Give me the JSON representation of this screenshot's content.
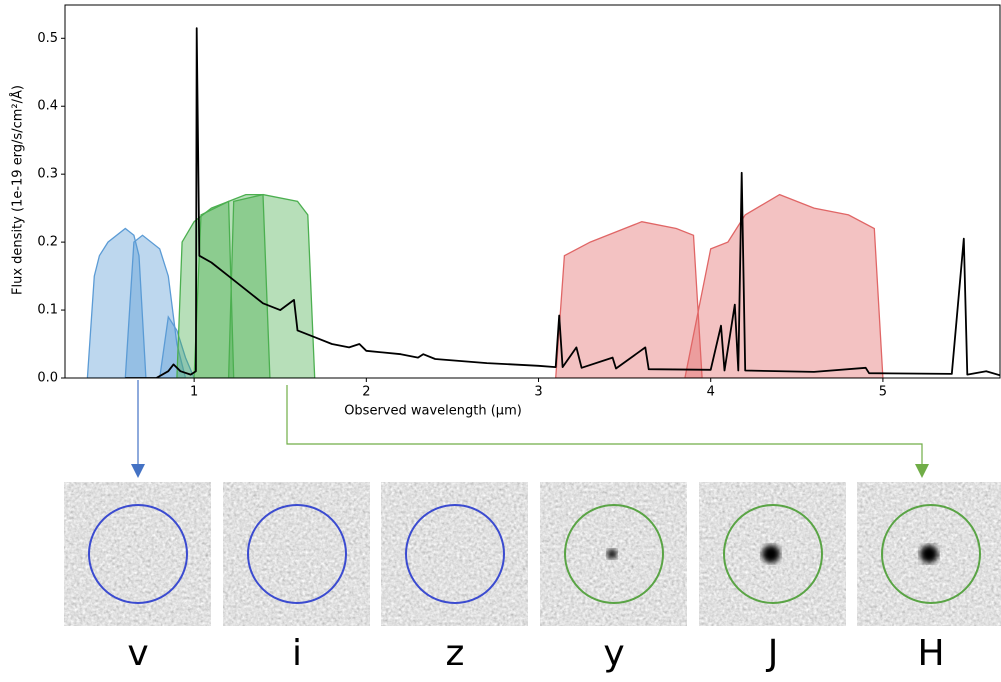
{
  "chart_data": {
    "type": "line",
    "xlabel": "Observed wavelength (μm)",
    "ylabel": "Flux density (1e-19 erg/s/cm²/Å)",
    "xlim": [
      0.25,
      5.68
    ],
    "ylim": [
      0,
      0.549
    ],
    "xticks": [
      1,
      2,
      3,
      4,
      5
    ],
    "yticks": [
      {
        "value": 0,
        "label": "0.0"
      },
      0.1,
      0.2,
      0.3,
      0.4,
      0.5
    ],
    "series": [
      {
        "type": "area",
        "color": "#5b9bd5",
        "x": [
          0.38,
          0.42,
          0.45,
          0.5,
          0.6,
          0.65,
          0.68,
          0.72
        ],
        "values": [
          0,
          0.15,
          0.18,
          0.2,
          0.22,
          0.21,
          0.18,
          0
        ]
      },
      {
        "type": "area",
        "color": "#5b9bd5",
        "x": [
          0.6,
          0.65,
          0.7,
          0.8,
          0.85,
          0.9,
          0.95
        ],
        "values": [
          0,
          0.2,
          0.21,
          0.19,
          0.15,
          0.05,
          0
        ]
      },
      {
        "type": "area",
        "color": "#5b9bd5",
        "x": [
          0.8,
          0.85,
          0.9,
          0.95,
          1.0
        ],
        "values": [
          0,
          0.09,
          0.07,
          0.03,
          0
        ]
      },
      {
        "type": "area",
        "color": "#4caf50",
        "x": [
          0.9,
          0.93,
          1.0,
          1.1,
          1.2,
          1.23
        ],
        "values": [
          0,
          0.2,
          0.23,
          0.25,
          0.26,
          0
        ]
      },
      {
        "type": "area",
        "color": "#4caf50",
        "x": [
          1.0,
          1.04,
          1.2,
          1.3,
          1.4,
          1.44
        ],
        "values": [
          0,
          0.24,
          0.26,
          0.27,
          0.27,
          0
        ]
      },
      {
        "type": "area",
        "color": "#4caf50",
        "x": [
          1.2,
          1.23,
          1.4,
          1.6,
          1.66,
          1.7
        ],
        "values": [
          0,
          0.26,
          0.27,
          0.26,
          0.24,
          0
        ]
      },
      {
        "type": "area",
        "color": "#e06666",
        "x": [
          3.1,
          3.15,
          3.3,
          3.5,
          3.6,
          3.8,
          3.9,
          3.95
        ],
        "values": [
          0,
          0.18,
          0.2,
          0.22,
          0.23,
          0.22,
          0.21,
          0
        ]
      },
      {
        "type": "area",
        "color": "#e06666",
        "x": [
          3.85,
          4.0,
          4.1,
          4.2,
          4.4,
          4.6,
          4.8,
          4.95,
          5.0
        ],
        "values": [
          0,
          0.19,
          0.2,
          0.24,
          0.27,
          0.25,
          0.24,
          0.22,
          0
        ]
      },
      {
        "type": "line",
        "color": "#000000",
        "x": [
          0.6,
          0.78,
          0.85,
          0.88,
          0.92,
          0.98,
          1.01,
          1.015,
          1.03,
          1.1,
          1.2,
          1.3,
          1.4,
          1.5,
          1.58,
          1.6,
          1.7,
          1.8,
          1.9,
          1.96,
          2.0,
          2.2,
          2.3,
          2.33,
          2.4,
          2.7,
          3.0,
          3.1,
          3.12,
          3.14,
          3.22,
          3.25,
          3.43,
          3.45,
          3.62,
          3.64,
          4.0,
          4.06,
          4.08,
          4.14,
          4.16,
          4.18,
          4.2,
          4.6,
          4.9,
          4.92,
          5.4,
          5.47,
          5.49,
          5.6,
          5.68
        ],
        "values": [
          0,
          0,
          0.01,
          0.02,
          0.01,
          0.005,
          0.01,
          0.515,
          0.18,
          0.17,
          0.15,
          0.13,
          0.11,
          0.1,
          0.115,
          0.07,
          0.06,
          0.05,
          0.045,
          0.05,
          0.04,
          0.035,
          0.03,
          0.035,
          0.028,
          0.022,
          0.018,
          0.016,
          0.092,
          0.016,
          0.045,
          0.015,
          0.03,
          0.014,
          0.045,
          0.013,
          0.012,
          0.077,
          0.011,
          0.108,
          0.011,
          0.302,
          0.011,
          0.009,
          0.015,
          0.007,
          0.006,
          0.205,
          0.005,
          0.01,
          0.004
        ]
      }
    ]
  },
  "cutouts": {
    "labels": [
      "v",
      "i",
      "z",
      "y",
      "J",
      "H"
    ]
  }
}
